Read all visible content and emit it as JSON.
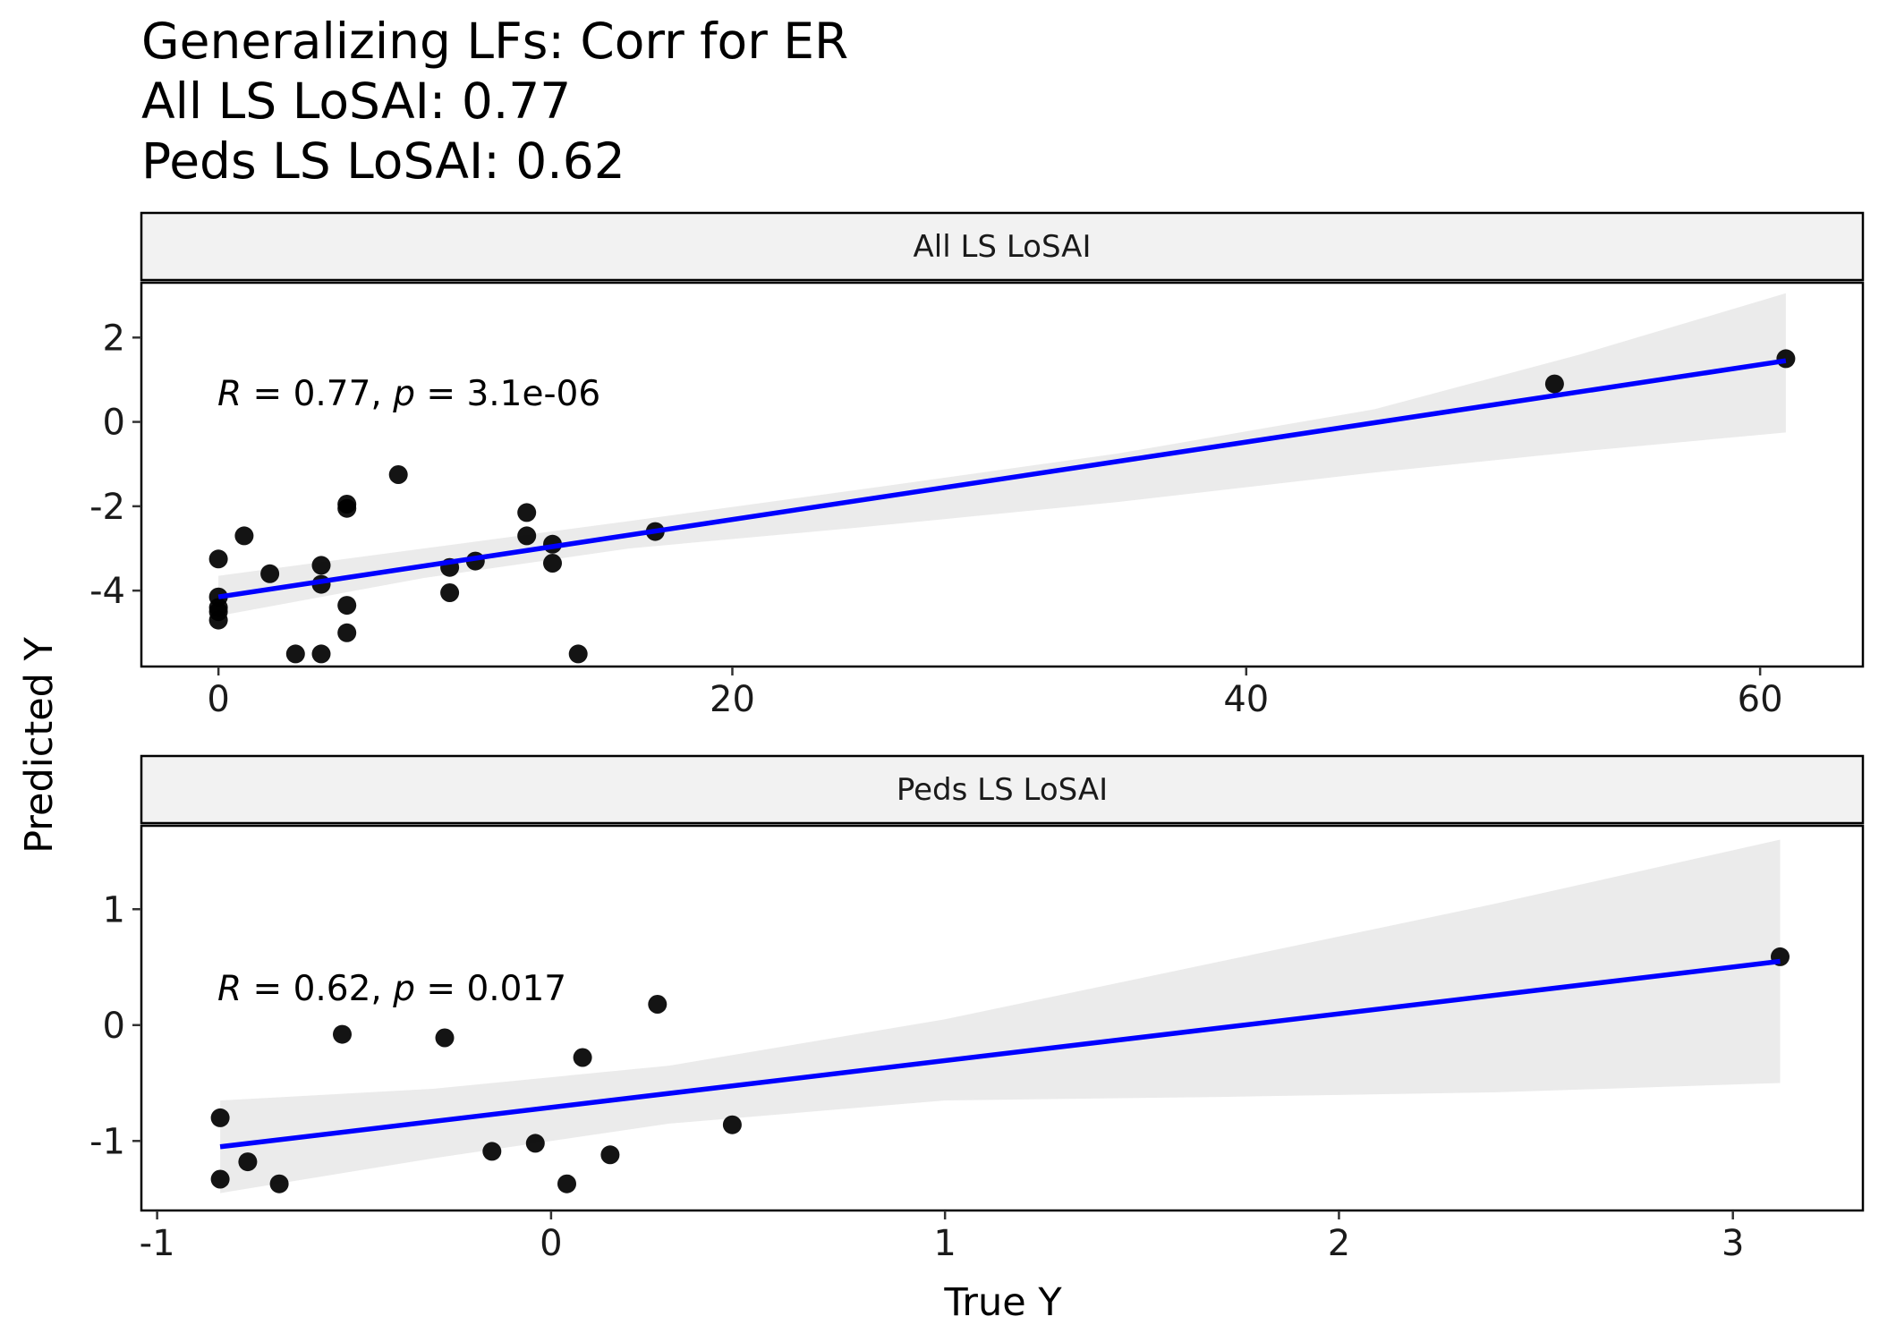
{
  "title": {
    "line1": "Generalizing LFs: Corr for ER",
    "line2": "All LS LoSAI: 0.77",
    "line3": "Peds LS LoSAI: 0.62"
  },
  "x_axis_title": "True Y",
  "y_axis_title": "Predicted Y",
  "colors": {
    "regression_line": "#0000ff",
    "confidence_band": "#ebebeb",
    "points": "#000000",
    "strip_fill": "#f2f2f2",
    "panel_border": "#000000"
  },
  "chart_data": [
    {
      "type": "scatter",
      "panel": "All LS LoSAI",
      "stat_label": {
        "R": "0.77",
        "p": "3.1e-06"
      },
      "xlim": [
        -3,
        64
      ],
      "ylim": [
        -5.8,
        3.3
      ],
      "xticks": [
        0,
        20,
        40,
        60
      ],
      "yticks": [
        2,
        0,
        -2,
        -4
      ],
      "regression": {
        "x": [
          0,
          61
        ],
        "y": [
          -4.15,
          1.45
        ]
      },
      "band": {
        "x": [
          0,
          8,
          16,
          25,
          35,
          45,
          53,
          61
        ],
        "lower": [
          -4.6,
          -3.7,
          -3.0,
          -2.5,
          -1.9,
          -1.2,
          -0.7,
          -0.25
        ],
        "upper": [
          -3.65,
          -3.0,
          -2.35,
          -1.6,
          -0.75,
          0.3,
          1.6,
          3.05
        ]
      },
      "points": [
        {
          "x": 0,
          "y": -3.25
        },
        {
          "x": 0,
          "y": -4.15
        },
        {
          "x": 0,
          "y": -4.4
        },
        {
          "x": 0,
          "y": -4.5
        },
        {
          "x": 0,
          "y": -4.7
        },
        {
          "x": 1,
          "y": -2.7
        },
        {
          "x": 2,
          "y": -3.6
        },
        {
          "x": 3,
          "y": -5.5
        },
        {
          "x": 4,
          "y": -3.4
        },
        {
          "x": 4,
          "y": -3.85
        },
        {
          "x": 4,
          "y": -5.5
        },
        {
          "x": 5,
          "y": -1.95
        },
        {
          "x": 5,
          "y": -2.05
        },
        {
          "x": 5,
          "y": -4.35
        },
        {
          "x": 5,
          "y": -5.0
        },
        {
          "x": 7,
          "y": -1.25
        },
        {
          "x": 9,
          "y": -3.45
        },
        {
          "x": 9,
          "y": -4.05
        },
        {
          "x": 10,
          "y": -3.3
        },
        {
          "x": 12,
          "y": -2.15
        },
        {
          "x": 12,
          "y": -2.7
        },
        {
          "x": 13,
          "y": -2.9
        },
        {
          "x": 13,
          "y": -3.35
        },
        {
          "x": 14,
          "y": -5.5
        },
        {
          "x": 17,
          "y": -2.6
        },
        {
          "x": 52,
          "y": 0.9
        },
        {
          "x": 61,
          "y": 1.5
        }
      ]
    },
    {
      "type": "scatter",
      "panel": "Peds LS LoSAI",
      "stat_label": {
        "R": "0.62",
        "p": "0.017"
      },
      "xlim": [
        -1.04,
        3.33
      ],
      "ylim": [
        -1.6,
        1.72
      ],
      "xticks": [
        -1,
        0,
        1,
        2,
        3
      ],
      "yticks": [
        1,
        0,
        -1
      ],
      "regression": {
        "x": [
          -0.84,
          3.12
        ],
        "y": [
          -1.05,
          0.55
        ]
      },
      "band": {
        "x": [
          -0.84,
          -0.3,
          0.3,
          1.0,
          1.7,
          2.4,
          3.12
        ],
        "lower": [
          -1.45,
          -1.15,
          -0.85,
          -0.65,
          -0.62,
          -0.58,
          -0.5
        ],
        "upper": [
          -0.65,
          -0.55,
          -0.35,
          0.05,
          0.55,
          1.05,
          1.6
        ]
      },
      "points": [
        {
          "x": -0.84,
          "y": -0.8
        },
        {
          "x": -0.84,
          "y": -1.33
        },
        {
          "x": -0.77,
          "y": -1.18
        },
        {
          "x": -0.69,
          "y": -1.37
        },
        {
          "x": -0.53,
          "y": -0.08
        },
        {
          "x": -0.27,
          "y": -0.11
        },
        {
          "x": -0.15,
          "y": -1.09
        },
        {
          "x": -0.04,
          "y": -1.02
        },
        {
          "x": 0.04,
          "y": -1.37
        },
        {
          "x": 0.08,
          "y": -0.28
        },
        {
          "x": 0.15,
          "y": -1.12
        },
        {
          "x": 0.27,
          "y": 0.18
        },
        {
          "x": 0.46,
          "y": -0.86
        },
        {
          "x": 3.12,
          "y": 0.59
        }
      ]
    }
  ]
}
